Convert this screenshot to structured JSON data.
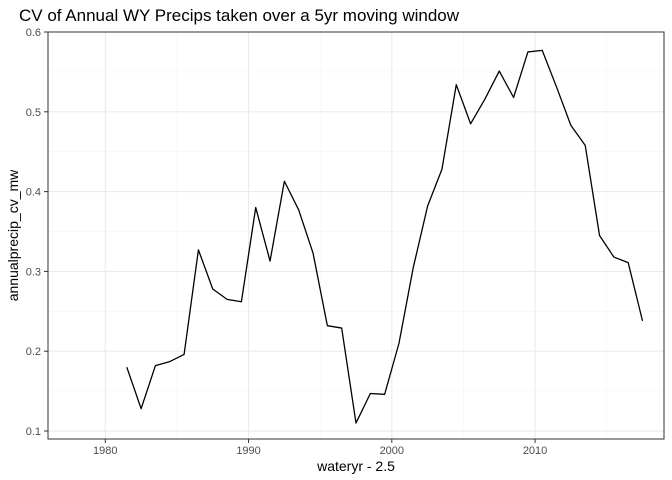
{
  "chart_data": {
    "type": "line",
    "title": "CV of Annual WY Precips taken over a 5yr moving window",
    "xlabel": "wateryr - 2.5",
    "ylabel": "annualprecip_cv_mw",
    "xlim": [
      1976,
      2019
    ],
    "ylim": [
      0.09,
      0.6
    ],
    "x_ticks": [
      1980,
      1990,
      2000,
      2010
    ],
    "y_ticks": [
      0.1,
      0.2,
      0.3,
      0.4,
      0.5,
      0.6
    ],
    "x_tick_labels": [
      "1980",
      "1990",
      "2000",
      "2010"
    ],
    "y_tick_labels": [
      "0.1",
      "0.2",
      "0.3",
      "0.4",
      "0.5",
      "0.6"
    ],
    "grid": true,
    "x": [
      1981.5,
      1982.5,
      1983.5,
      1984.5,
      1985.5,
      1986.5,
      1987.5,
      1988.5,
      1989.5,
      1990.5,
      1991.5,
      1992.5,
      1993.5,
      1994.5,
      1995.5,
      1996.5,
      1997.5,
      1998.5,
      1999.5,
      2000.5,
      2001.5,
      2002.5,
      2003.5,
      2004.5,
      2005.5,
      2006.5,
      2007.5,
      2008.5,
      2009.5,
      2010.5,
      2011.5,
      2012.5,
      2013.5,
      2014.5,
      2015.5,
      2016.5,
      2017.5
    ],
    "y": [
      0.18,
      0.128,
      0.182,
      0.187,
      0.196,
      0.327,
      0.278,
      0.265,
      0.262,
      0.38,
      0.313,
      0.413,
      0.377,
      0.323,
      0.232,
      0.229,
      0.11,
      0.147,
      0.146,
      0.21,
      0.305,
      0.382,
      0.428,
      0.534,
      0.485,
      0.516,
      0.551,
      0.518,
      0.575,
      0.577,
      0.531,
      0.483,
      0.458,
      0.345,
      0.318,
      0.311,
      0.238
    ],
    "colors": {
      "line": "#000000",
      "panel_border": "#333333",
      "grid_major": "#ebebeb",
      "grid_minor": "#f4f4f4"
    }
  }
}
